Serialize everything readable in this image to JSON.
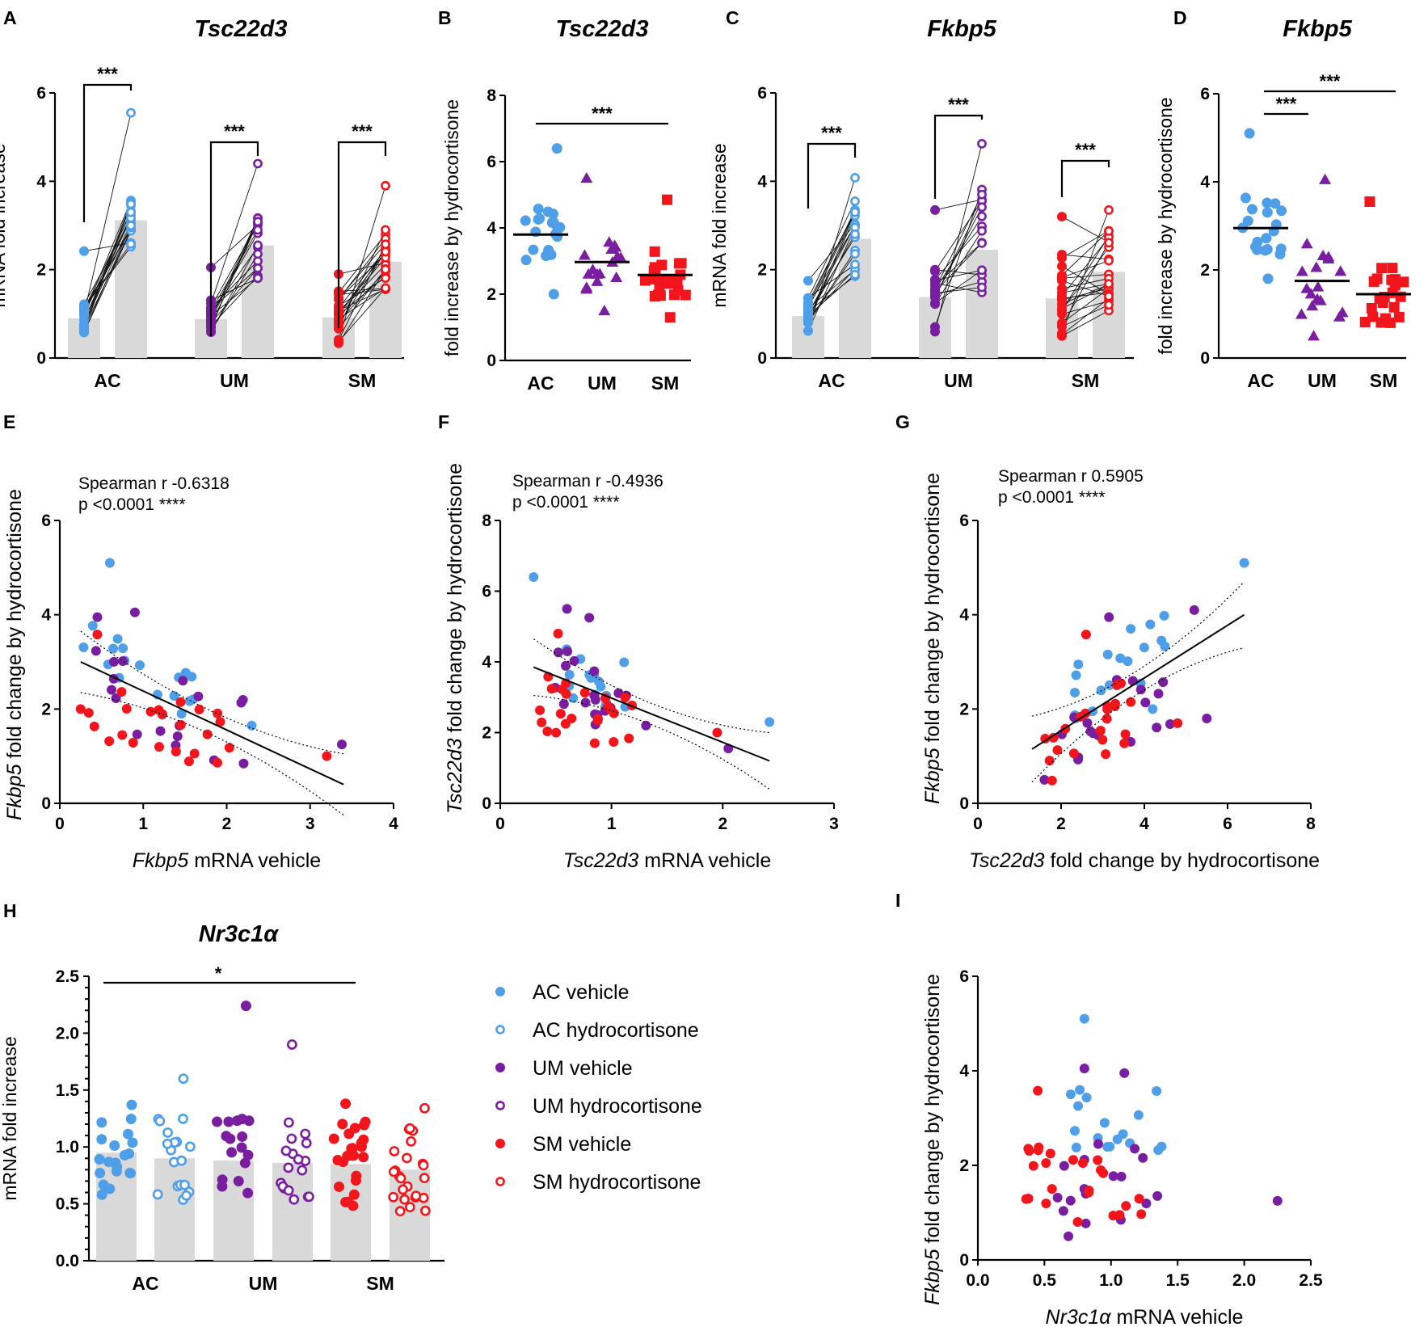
{
  "colors": {
    "AC": "#4f9ee8",
    "UM": "#7a1ea1",
    "SM": "#f2161c",
    "bar": "#d9d9d9"
  },
  "legend": [
    {
      "label": "AC vehicle",
      "color": "#4f9ee8",
      "filled": true
    },
    {
      "label": "AC hydrocortisone",
      "color": "#4f9ee8",
      "filled": false
    },
    {
      "label": "UM vehicle",
      "color": "#7a1ea1",
      "filled": true
    },
    {
      "label": "UM hydrocortisone",
      "color": "#7a1ea1",
      "filled": false
    },
    {
      "label": "SM vehicle",
      "color": "#f2161c",
      "filled": true
    },
    {
      "label": "SM hydrocortisone",
      "color": "#f2161c",
      "filled": false
    }
  ],
  "chart_data": [
    {
      "panel": "A",
      "type": "bar",
      "title": "Tsc22d3",
      "ylabel": "mRNA fold increase",
      "categories": [
        "AC",
        "UM",
        "SM"
      ],
      "ylim": [
        0,
        6
      ],
      "yticks": [
        "0",
        "2",
        "4",
        "6"
      ],
      "series": [
        {
          "name": "vehicle (bar mean)",
          "values": [
            0.9,
            0.88,
            0.92
          ]
        },
        {
          "name": "hydrocortisone (bar mean)",
          "values": [
            3.12,
            2.55,
            2.18
          ]
        }
      ],
      "annotations": [
        "***",
        "***",
        "***"
      ]
    },
    {
      "panel": "B",
      "type": "scatter",
      "title": "Tsc22d3",
      "ylabel": "fold increase by hydrocortisone",
      "categories": [
        "AC",
        "UM",
        "SM"
      ],
      "ylim": [
        0,
        8
      ],
      "yticks": [
        "0",
        "2",
        "4",
        "6",
        "8"
      ],
      "medians": [
        3.8,
        2.97,
        2.58
      ],
      "annotations": [
        "***"
      ]
    },
    {
      "panel": "C",
      "type": "bar",
      "title": "Fkbp5",
      "ylabel": "mRNA fold increase",
      "categories": [
        "AC",
        "UM",
        "SM"
      ],
      "ylim": [
        0,
        6
      ],
      "yticks": [
        "0",
        "2",
        "4",
        "6"
      ],
      "series": [
        {
          "name": "vehicle (bar mean)",
          "values": [
            0.95,
            1.38,
            1.35
          ]
        },
        {
          "name": "hydrocortisone (bar mean)",
          "values": [
            2.7,
            2.45,
            1.95
          ]
        }
      ],
      "annotations": [
        "***",
        "***",
        "***"
      ]
    },
    {
      "panel": "D",
      "type": "scatter",
      "title": "Fkbp5",
      "ylabel": "fold increase by hydrocortisone",
      "categories": [
        "AC",
        "UM",
        "SM"
      ],
      "ylim": [
        0,
        6
      ],
      "yticks": [
        "0",
        "2",
        "4",
        "6"
      ],
      "medians": [
        2.95,
        1.75,
        1.45
      ],
      "annotations": [
        "***",
        "***"
      ]
    },
    {
      "panel": "E",
      "type": "scatter",
      "xlabel_italic": "Fkbp5",
      "xlabel": " mRNA vehicle",
      "ylabel_italic": "Fkbp5",
      "ylabel": " fold change by hydrocortisone",
      "xlim": [
        0,
        4
      ],
      "ylim": [
        0,
        6
      ],
      "xticks": [
        "0",
        "1",
        "2",
        "3",
        "4"
      ],
      "yticks": [
        "0",
        "2",
        "4",
        "6"
      ],
      "stat_line1": "Spearman r -0.6318",
      "stat_line2": "p <0.0001 ****",
      "fit": {
        "x": [
          0.25,
          3.4
        ],
        "y": [
          3.0,
          0.4
        ]
      }
    },
    {
      "panel": "F",
      "type": "scatter",
      "xlabel_italic": "Tsc22d3",
      "xlabel": " mRNA vehicle",
      "ylabel_italic": "Tsc22d3",
      "ylabel": " fold change by hydrocortisone",
      "xlim": [
        0,
        3
      ],
      "ylim": [
        0,
        8
      ],
      "xticks": [
        "0",
        "1",
        "2",
        "3"
      ],
      "yticks": [
        "0",
        "2",
        "4",
        "6",
        "8"
      ],
      "stat_line1": "Spearman r -0.4936",
      "stat_line2": "p <0.0001 ****",
      "fit": {
        "x": [
          0.3,
          2.42
        ],
        "y": [
          3.85,
          1.2
        ]
      }
    },
    {
      "panel": "G",
      "type": "scatter",
      "xlabel_italic": "Tsc22d3",
      "xlabel": " fold change by hydrocortisone",
      "ylabel_italic": "Fkbp5",
      "ylabel": " fold change by hydrocortisone",
      "xlim": [
        0,
        8
      ],
      "ylim": [
        0,
        6
      ],
      "xticks": [
        "0",
        "2",
        "4",
        "6",
        "8"
      ],
      "yticks": [
        "0",
        "2",
        "4",
        "6"
      ],
      "stat_line1": "Spearman r 0.5905",
      "stat_line2": "p <0.0001 ****",
      "fit": {
        "x": [
          1.3,
          6.4
        ],
        "y": [
          1.15,
          4.0
        ]
      }
    },
    {
      "panel": "H",
      "type": "bar",
      "title": "Nr3c1α",
      "ylabel": "mRNA fold increase",
      "categories": [
        "AC",
        "UM",
        "SM"
      ],
      "ylim": [
        0,
        2.5
      ],
      "yticks": [
        "0.0",
        "0.5",
        "1.0",
        "1.5",
        "2.0",
        "2.5"
      ],
      "series": [
        {
          "name": "vehicle (bar mean)",
          "values": [
            0.95,
            0.88,
            0.85
          ]
        },
        {
          "name": "hydrocortisone (bar mean)",
          "values": [
            0.9,
            0.86,
            0.8
          ]
        }
      ],
      "annotations": [
        "*"
      ]
    },
    {
      "panel": "I",
      "type": "scatter",
      "xlabel_italic": "Nr3c1α",
      "xlabel": " mRNA vehicle",
      "ylabel_italic": "Fkbp5",
      "ylabel": " fold change by hydrocortisone",
      "xlim": [
        0,
        2.5
      ],
      "ylim": [
        0,
        6
      ],
      "xticks": [
        "0.0",
        "0.5",
        "1.0",
        "1.5",
        "2.0",
        "2.5"
      ],
      "yticks": [
        "0",
        "2",
        "4",
        "6"
      ]
    }
  ]
}
